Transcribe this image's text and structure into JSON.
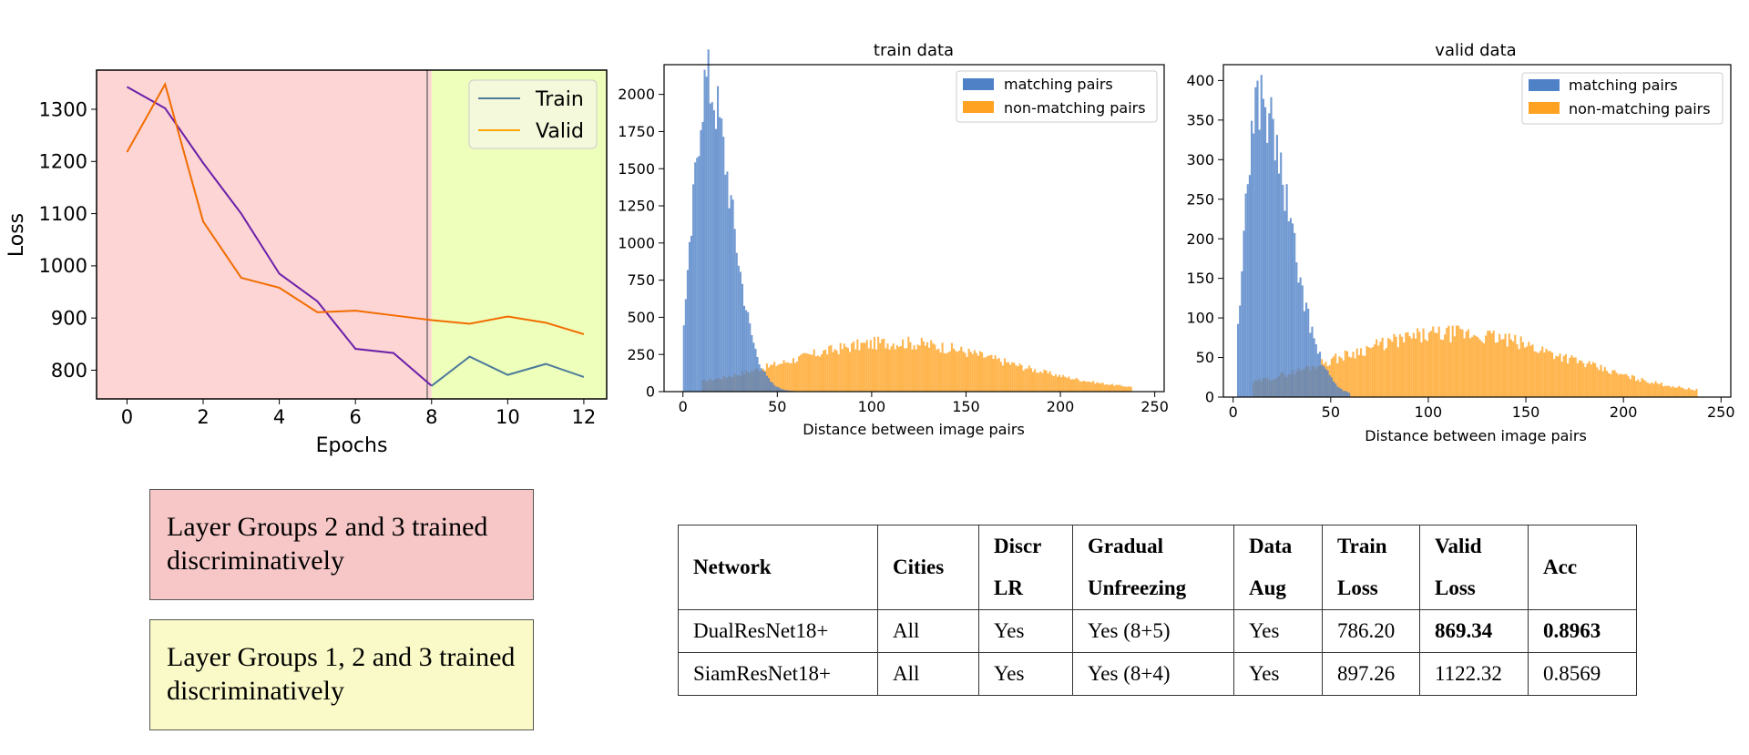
{
  "loss_chart": {
    "ylabel": "Loss",
    "xlabel": "Epochs",
    "x_ticks": [
      "0",
      "2",
      "4",
      "6",
      "8",
      "10",
      "12"
    ],
    "y_ticks": [
      "800",
      "900",
      "1000",
      "1100",
      "1200",
      "1300"
    ],
    "legend": [
      "Train",
      "Valid"
    ]
  },
  "train_hist": {
    "title": "train data",
    "xlabel": "Distance between image pairs",
    "x_ticks": [
      "0",
      "50",
      "100",
      "150",
      "200",
      "250"
    ],
    "y_ticks": [
      "0",
      "250",
      "500",
      "750",
      "1000",
      "1250",
      "1500",
      "1750",
      "2000"
    ],
    "legend": [
      "matching pairs",
      "non-matching pairs"
    ]
  },
  "valid_hist": {
    "title": "valid data",
    "xlabel": "Distance between image pairs",
    "x_ticks": [
      "0",
      "50",
      "100",
      "150",
      "200",
      "250"
    ],
    "y_ticks": [
      "0",
      "50",
      "100",
      "150",
      "200",
      "250",
      "300",
      "350",
      "400"
    ],
    "legend": [
      "matching pairs",
      "non-matching pairs"
    ]
  },
  "legend_boxes": {
    "pink": "Layer Groups 2 and 3 trained discriminatively",
    "yellow": "Layer Groups 1, 2 and 3 trained discriminatively"
  },
  "results_table": {
    "headers": [
      "Network",
      "Cities",
      "Discr LR",
      "Gradual Unfreezing",
      "Data Aug",
      "Train Loss",
      "Valid Loss",
      "Acc"
    ],
    "rows": [
      [
        "DualResNet18+",
        "All",
        "Yes",
        "Yes (8+5)",
        "Yes",
        "786.20",
        "869.34",
        "0.8963"
      ],
      [
        "SiamResNet18+",
        "All",
        "Yes",
        "Yes (8+4)",
        "Yes",
        "897.26",
        "1122.32",
        "0.8569"
      ]
    ]
  },
  "chart_data": [
    {
      "type": "line",
      "xlabel": "Epochs",
      "ylabel": "Loss",
      "xlim": [
        -0.8,
        12.6
      ],
      "ylim": [
        745,
        1375
      ],
      "shaded_regions": [
        {
          "from": -0.8,
          "to": 8,
          "color": "#fdd5d5"
        },
        {
          "from": 8,
          "to": 12.6,
          "color": "#eeffbb"
        }
      ],
      "series": [
        {
          "name": "Train",
          "segments": [
            {
              "x": [
                0,
                1,
                2,
                3,
                4,
                5,
                6,
                7,
                8
              ],
              "y": [
                1343,
                1302,
                1197,
                1100,
                985,
                932,
                841,
                833,
                770
              ],
              "color": "#6a1fa8"
            },
            {
              "x": [
                8,
                9,
                10,
                11,
                12
              ],
              "y": [
                770,
                826,
                791,
                812,
                787
              ],
              "color": "#4d7a9a"
            }
          ]
        },
        {
          "name": "Valid",
          "segments": [
            {
              "x": [
                0,
                1,
                2,
                3,
                4,
                5,
                6,
                7,
                8,
                9,
                10,
                11,
                12
              ],
              "y": [
                1218,
                1348,
                1085,
                977,
                958,
                911,
                914,
                905,
                896,
                889,
                903,
                891,
                869
              ],
              "color": "#f26c00"
            }
          ]
        }
      ],
      "legend_colors": {
        "Train": "#4d7a9a",
        "Valid": "#ffa500"
      },
      "legend_position": "upper-right"
    },
    {
      "type": "histogram",
      "title": "train data",
      "xlabel": "Distance between image pairs",
      "xlim": [
        -10,
        255
      ],
      "ylim": [
        0,
        2200
      ],
      "series": [
        {
          "name": "matching pairs",
          "color": "#4f81c7",
          "shape": "skewed",
          "start": 0,
          "peak_x": 12,
          "peak": 2100,
          "rise": 7,
          "fall": 13
        },
        {
          "name": "non-matching pairs",
          "color": "#ffa222",
          "shape": "bell",
          "start": 10,
          "end": 238,
          "peak_x": 112,
          "peak": 330,
          "spread": 58
        }
      ],
      "legend_position": "upper-right"
    },
    {
      "type": "histogram",
      "title": "valid data",
      "xlabel": "Distance between image pairs",
      "xlim": [
        -5,
        255
      ],
      "ylim": [
        0,
        420
      ],
      "series": [
        {
          "name": "matching pairs",
          "color": "#4f81c7",
          "shape": "skewed",
          "start": 2,
          "peak_x": 12,
          "peak": 380,
          "rise": 6,
          "fall": 16
        },
        {
          "name": "non-matching pairs",
          "color": "#ffa222",
          "shape": "bell",
          "start": 10,
          "end": 238,
          "peak_x": 112,
          "peak": 80,
          "spread": 60
        }
      ],
      "legend_position": "upper-right"
    }
  ]
}
